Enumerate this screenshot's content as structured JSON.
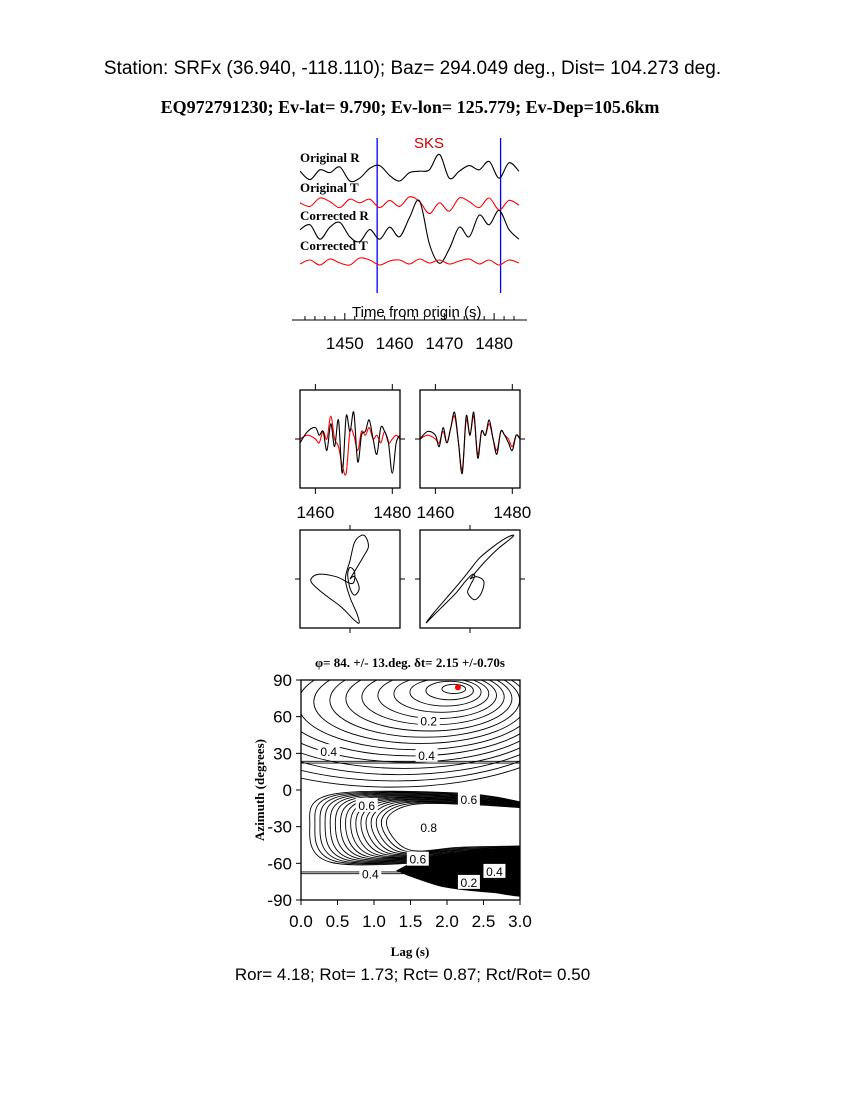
{
  "header": {
    "station_line": "Station: SRFx (36.940, -118.110); Baz=  294.049 deg., Dist=  104.273 deg.",
    "event_line": "EQ972791230; Ev-lat=   9.790; Ev-lon= 125.779; Ev-Dep=105.6km"
  },
  "footer": {
    "ratios": "Ror= 4.18; Rot= 1.73; Rct= 0.87; Rct/Rot= 0.50"
  },
  "colors": {
    "radial": "#000000",
    "transverse": "#ff0000",
    "window": "#0000ff",
    "best_fit": "#ff0000"
  },
  "chart_data": [
    {
      "type": "line",
      "id": "seismograms",
      "phase_label": "SKS",
      "trace_labels": [
        "Original R",
        "Original T",
        "Corrected R",
        "Corrected T"
      ],
      "xlabel": "Time from origin (s)",
      "xticks": [
        1450,
        1460,
        1470,
        1480
      ],
      "xlim": [
        1441,
        1485
      ],
      "window": [
        1456.5,
        1481.3
      ],
      "traces": [
        {
          "name": "Original R",
          "color": "#000000",
          "x": [
            1441,
            1443,
            1445,
            1447,
            1449,
            1451,
            1453,
            1455,
            1457,
            1459,
            1461,
            1463,
            1465,
            1467,
            1469,
            1471,
            1473,
            1475,
            1477,
            1479,
            1481,
            1483,
            1485
          ],
          "y": [
            0.2,
            -0.4,
            0.3,
            0.1,
            0.5,
            -0.5,
            -0.3,
            0.4,
            0.6,
            -0.1,
            -0.5,
            0.1,
            0.2,
            0.3,
            1.4,
            -0.3,
            0.2,
            0.6,
            0.3,
            0.9,
            -0.3,
            0.8,
            0.2
          ]
        },
        {
          "name": "Original T",
          "color": "#ff0000",
          "x": [
            1441,
            1443,
            1445,
            1447,
            1449,
            1451,
            1453,
            1455,
            1457,
            1459,
            1461,
            1463,
            1465,
            1467,
            1469,
            1471,
            1473,
            1475,
            1477,
            1479,
            1481,
            1483,
            1485
          ],
          "y": [
            0.1,
            -0.2,
            0.5,
            0.2,
            -0.3,
            0.4,
            0.1,
            0.4,
            -0.3,
            0.3,
            -0.2,
            0.6,
            0.2,
            -0.8,
            0.1,
            -0.6,
            0.5,
            0.2,
            -0.3,
            0.5,
            -0.5,
            0.3,
            -0.1
          ]
        },
        {
          "name": "Corrected R",
          "color": "#000000",
          "x": [
            1441,
            1443,
            1445,
            1447,
            1449,
            1451,
            1453,
            1455,
            1457,
            1459,
            1461,
            1463,
            1465,
            1467,
            1469,
            1471,
            1473,
            1475,
            1477,
            1479,
            1481,
            1483,
            1485
          ],
          "y": [
            0.1,
            0.3,
            -0.3,
            0.2,
            0.4,
            -0.2,
            -0.4,
            0.1,
            -0.3,
            0.2,
            -0.2,
            0.6,
            1.3,
            -0.5,
            -1.3,
            -0.7,
            0.2,
            -0.2,
            0.7,
            0.3,
            0.9,
            0.1,
            -0.3
          ]
        },
        {
          "name": "Corrected T",
          "color": "#ff0000",
          "x": [
            1441,
            1443,
            1445,
            1447,
            1449,
            1451,
            1453,
            1455,
            1457,
            1459,
            1461,
            1463,
            1465,
            1467,
            1469,
            1471,
            1473,
            1475,
            1477,
            1479,
            1481,
            1483,
            1485
          ],
          "y": [
            -0.2,
            0.2,
            -0.3,
            0.3,
            -0.1,
            -0.3,
            0.4,
            0.2,
            -0.3,
            0.1,
            0.2,
            -0.2,
            0.3,
            -0.1,
            0.2,
            -0.2,
            0.1,
            0.3,
            -0.2,
            0.2,
            -0.3,
            0.2,
            -0.1
          ]
        }
      ]
    },
    {
      "type": "line",
      "id": "waveform-overlay-original",
      "xticks": [
        1460,
        1480
      ],
      "xlim": [
        1456,
        1482
      ],
      "series": [
        {
          "name": "radial",
          "color": "#000000",
          "x": [
            1456,
            1458,
            1460,
            1461,
            1462,
            1463,
            1464,
            1465,
            1466,
            1467,
            1468,
            1469,
            1470,
            1471,
            1472,
            1473,
            1474,
            1475,
            1476,
            1477,
            1478,
            1479,
            1480,
            1481,
            1482
          ],
          "y": [
            -0.1,
            0.2,
            0.3,
            0.1,
            0.2,
            -0.3,
            0.4,
            -0.2,
            0.5,
            -0.9,
            0.6,
            0.2,
            0.7,
            -0.6,
            0.1,
            0.2,
            0.5,
            0.0,
            -0.4,
            0.3,
            0.2,
            -0.1,
            -0.9,
            -0.1,
            0.1
          ]
        },
        {
          "name": "transverse",
          "color": "#ff0000",
          "x": [
            1456,
            1458,
            1460,
            1461,
            1462,
            1463,
            1464,
            1465,
            1466,
            1467,
            1468,
            1469,
            1470,
            1471,
            1472,
            1473,
            1474,
            1475,
            1476,
            1477,
            1478,
            1479,
            1480,
            1481,
            1482
          ],
          "y": [
            0.0,
            0.1,
            0.0,
            -0.1,
            0.2,
            0.0,
            0.6,
            0.0,
            -0.2,
            -0.7,
            -0.9,
            0.2,
            0.1,
            -0.3,
            0.2,
            0.1,
            0.3,
            0.0,
            0.1,
            -0.1,
            0.2,
            -0.1,
            0.0,
            0.1,
            0.0
          ]
        }
      ]
    },
    {
      "type": "line",
      "id": "waveform-overlay-corrected",
      "xticks": [
        1460,
        1480
      ],
      "xlim": [
        1456,
        1482
      ],
      "series": [
        {
          "name": "radial",
          "color": "#000000",
          "x": [
            1456,
            1458,
            1460,
            1461,
            1462,
            1463,
            1464,
            1465,
            1466,
            1467,
            1468,
            1469,
            1470,
            1471,
            1472,
            1473,
            1474,
            1475,
            1476,
            1477,
            1478,
            1479,
            1480,
            1481,
            1482
          ],
          "y": [
            0.0,
            0.2,
            0.1,
            -0.2,
            0.3,
            -0.1,
            0.3,
            0.7,
            -0.1,
            -0.9,
            0.6,
            0.1,
            0.7,
            -0.5,
            0.2,
            0.1,
            0.5,
            0.0,
            -0.4,
            0.2,
            0.1,
            -0.1,
            -0.3,
            0.1,
            0.0
          ]
        },
        {
          "name": "transverse",
          "color": "#ff0000",
          "x": [
            1456,
            1458,
            1460,
            1461,
            1462,
            1463,
            1464,
            1465,
            1466,
            1467,
            1468,
            1469,
            1470,
            1471,
            1472,
            1473,
            1474,
            1475,
            1476,
            1477,
            1478,
            1479,
            1480,
            1481,
            1482
          ],
          "y": [
            0.0,
            0.1,
            0.0,
            -0.1,
            0.2,
            -0.1,
            0.3,
            0.6,
            -0.1,
            -0.8,
            0.5,
            0.1,
            0.6,
            -0.4,
            0.2,
            0.1,
            0.4,
            0.0,
            -0.3,
            0.2,
            0.1,
            0.0,
            -0.2,
            0.1,
            0.0
          ]
        }
      ]
    },
    {
      "type": "scatter",
      "id": "particle-motion-original",
      "motion": "elliptical",
      "x": [
        0.0,
        0.3,
        0.4,
        0.35,
        0.25,
        0.1,
        0.0,
        -0.1,
        0.0,
        0.15,
        0.2,
        0.1,
        -0.2,
        -0.6,
        -0.85,
        -0.7,
        -0.3,
        0.05,
        0.1,
        0.0,
        -0.05,
        0.0,
        0.1,
        0.2,
        0.1,
        0.0
      ],
      "y": [
        0.0,
        0.5,
        0.7,
        0.9,
        0.95,
        0.8,
        0.4,
        0.0,
        -0.4,
        -0.75,
        -0.95,
        -0.9,
        -0.6,
        -0.3,
        -0.05,
        0.1,
        0.05,
        -0.1,
        0.15,
        0.25,
        0.1,
        -0.2,
        -0.35,
        -0.2,
        0.05,
        0.0
      ]
    },
    {
      "type": "scatter",
      "id": "particle-motion-corrected",
      "motion": "linear",
      "x": [
        0.0,
        0.3,
        0.6,
        0.85,
        0.95,
        0.8,
        0.5,
        0.2,
        0.0,
        -0.2,
        -0.5,
        -0.8,
        -0.95,
        -0.85,
        -0.6,
        -0.3,
        -0.1,
        0.05,
        0.1,
        0.0,
        -0.05,
        0.1,
        0.25,
        0.3,
        0.15,
        0.0
      ],
      "y": [
        0.0,
        0.35,
        0.65,
        0.85,
        0.95,
        0.9,
        0.7,
        0.45,
        0.2,
        -0.05,
        -0.4,
        -0.75,
        -0.95,
        -0.85,
        -0.6,
        -0.3,
        -0.05,
        0.1,
        0.05,
        -0.15,
        -0.3,
        -0.45,
        -0.3,
        -0.05,
        0.05,
        0.0
      ]
    },
    {
      "type": "heatmap",
      "id": "misfit-contour",
      "title": "φ= 84. +/- 13.deg. δt= 2.15 +/-0.70s",
      "xlabel": "Lag (s)",
      "ylabel": "Azimuth (degrees)",
      "xlim": [
        0.0,
        3.0
      ],
      "ylim": [
        -90,
        90
      ],
      "xticks": [
        0.0,
        0.5,
        1.0,
        1.5,
        2.0,
        2.5,
        3.0
      ],
      "yticks": [
        90,
        60,
        30,
        0,
        -30,
        -60,
        -90
      ],
      "best_fit": {
        "lag": 2.15,
        "azimuth": 84
      },
      "contour_labels": [
        {
          "text": "0.2",
          "x": 1.75,
          "y": 56
        },
        {
          "text": "0.4",
          "x": 0.38,
          "y": 31
        },
        {
          "text": "0.4",
          "x": 1.72,
          "y": 28
        },
        {
          "text": "0.6",
          "x": 2.3,
          "y": -8
        },
        {
          "text": "0.6",
          "x": 0.9,
          "y": -13
        },
        {
          "text": "0.8",
          "x": 1.75,
          "y": -31
        },
        {
          "text": "0.6",
          "x": 1.6,
          "y": -57
        },
        {
          "text": "0.4",
          "x": 0.95,
          "y": -69
        },
        {
          "text": "0.4",
          "x": 2.65,
          "y": -67
        },
        {
          "text": "0.2",
          "x": 2.3,
          "y": -76
        }
      ]
    }
  ]
}
